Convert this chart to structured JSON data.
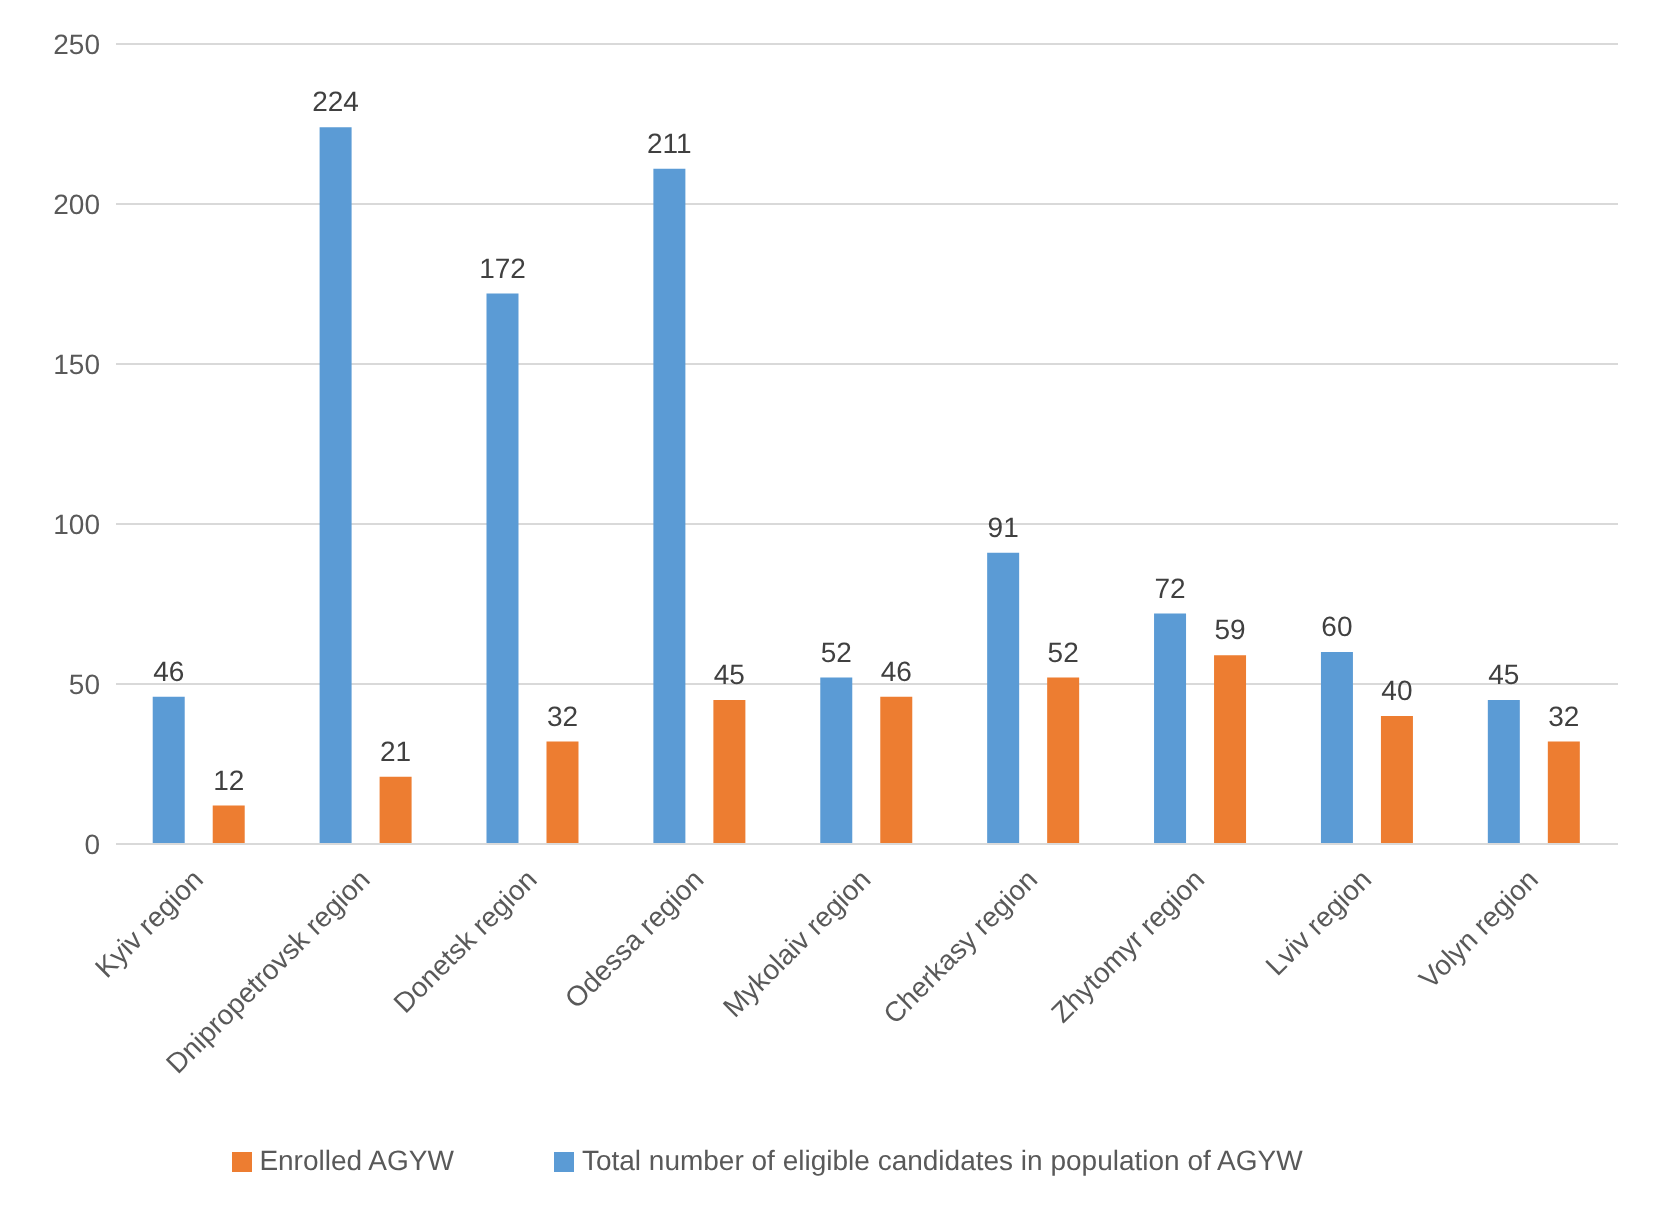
{
  "chart_data": {
    "type": "bar",
    "categories": [
      "Kyiv region",
      "Dnipropetrovsk region",
      "Donetsk region",
      "Odessa region",
      "Mykolaiv region",
      "Cherkasy region",
      "Zhytomyr region",
      "Lviv region",
      "Volyn region"
    ],
    "series": [
      {
        "name": "Total number of eligible candidates in population of AGYW",
        "color": "#5b9bd5",
        "values": [
          46,
          224,
          172,
          211,
          52,
          91,
          72,
          60,
          45
        ]
      },
      {
        "name": "Enrolled AGYW",
        "color": "#ed7d31",
        "values": [
          12,
          21,
          32,
          45,
          46,
          52,
          59,
          40,
          32
        ]
      }
    ],
    "ylim": [
      0,
      250
    ],
    "yticks": [
      0,
      50,
      100,
      150,
      200,
      250
    ],
    "grid": "y",
    "legend": "bottom",
    "data_labels": true
  }
}
